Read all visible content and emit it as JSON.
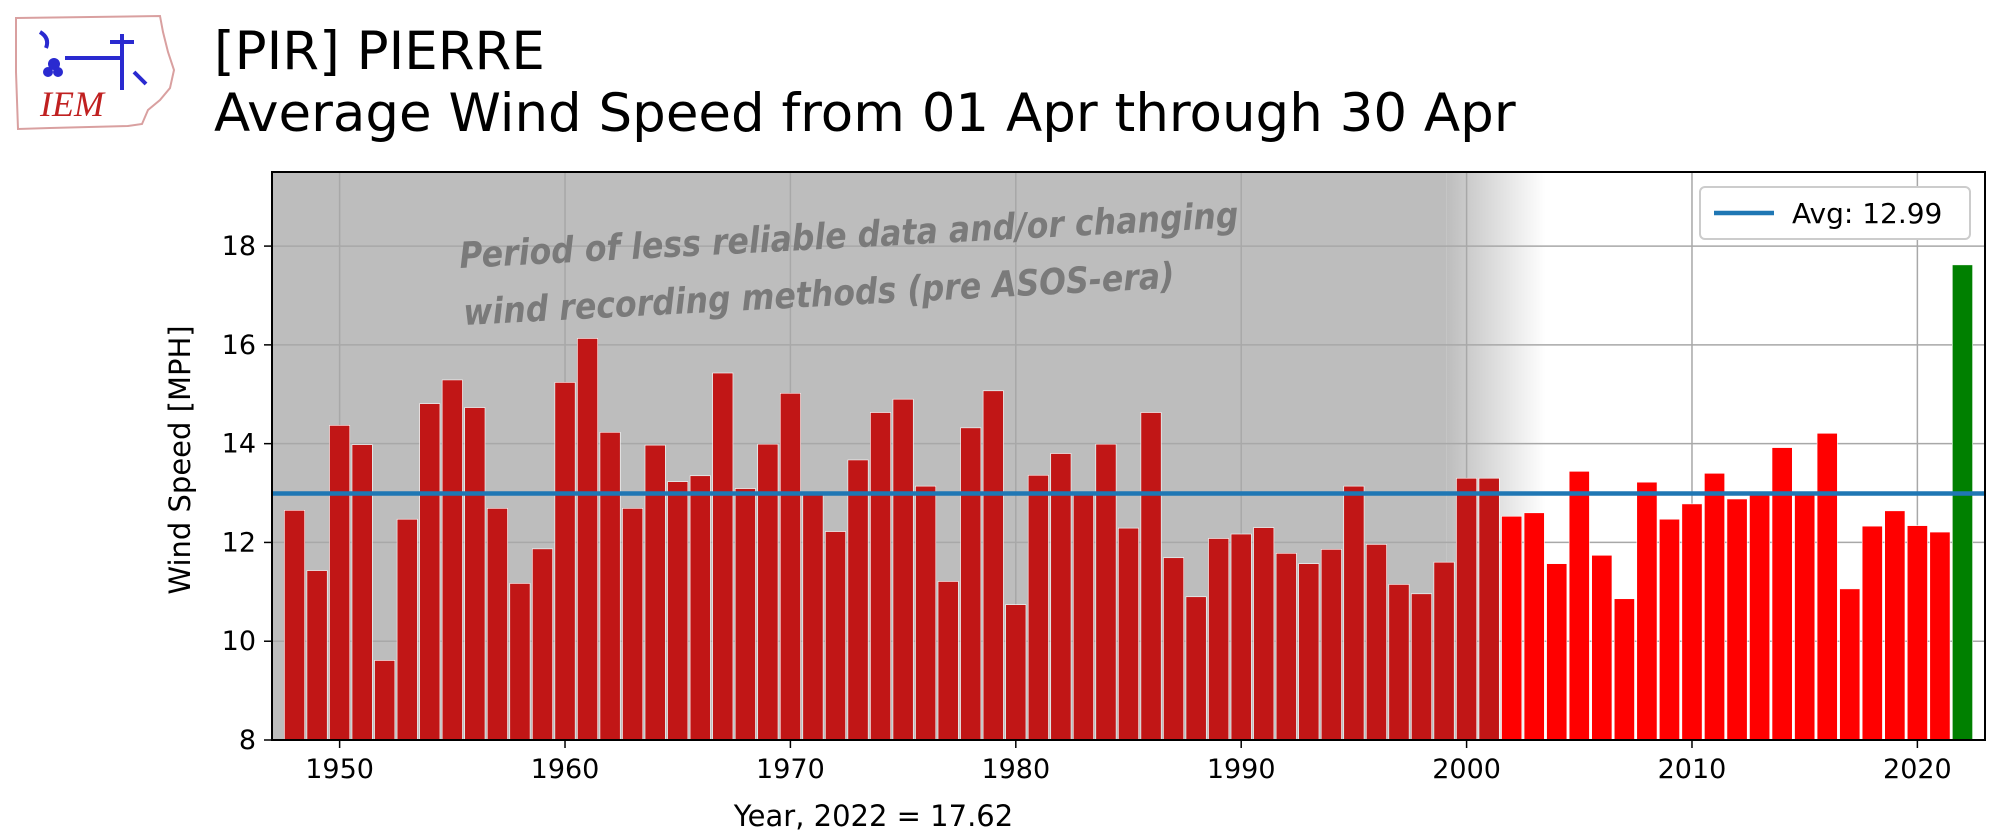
{
  "station_title": "[PIR] PIERRE",
  "subtitle": "Average Wind Speed from 01 Apr through 30 Apr",
  "logo_text": "IEM",
  "colors": {
    "early_bar": "#c11616",
    "modern_bar": "#ff0000",
    "current_bar": "#008000",
    "avg_line": "#1f77b4",
    "shade": "#bdbdbd"
  },
  "chart_data": {
    "type": "bar",
    "xlabel": "Year, 2022 = 17.62",
    "ylabel": "Wind Speed [MPH]",
    "xlim": [
      1947,
      2023
    ],
    "ylim": [
      8,
      19.5
    ],
    "x_ticks": [
      "1950",
      "1960",
      "1970",
      "1980",
      "1990",
      "2000",
      "2010",
      "2020"
    ],
    "y_ticks": [
      "8",
      "10",
      "12",
      "14",
      "16",
      "18"
    ],
    "grid": true,
    "legend_position": "top-right",
    "average": 12.99,
    "avg_label": "Avg: 12.99",
    "annotation_line1": "Period of less reliable data and/or changing",
    "annotation_line2": "wind recording methods (pre ASOS-era)",
    "shaded_until_year": 2000,
    "years": [
      1948,
      1949,
      1950,
      1951,
      1952,
      1953,
      1954,
      1955,
      1956,
      1957,
      1958,
      1959,
      1960,
      1961,
      1962,
      1963,
      1964,
      1965,
      1966,
      1967,
      1968,
      1969,
      1970,
      1971,
      1972,
      1973,
      1974,
      1975,
      1976,
      1977,
      1978,
      1979,
      1980,
      1981,
      1982,
      1983,
      1984,
      1985,
      1986,
      1987,
      1988,
      1989,
      1990,
      1991,
      1992,
      1993,
      1994,
      1995,
      1996,
      1997,
      1998,
      1999,
      2000,
      2001,
      2002,
      2003,
      2004,
      2005,
      2006,
      2007,
      2008,
      2009,
      2010,
      2011,
      2012,
      2013,
      2014,
      2015,
      2016,
      2017,
      2018,
      2019,
      2020,
      2021,
      2022
    ],
    "values": [
      12.65,
      11.43,
      14.37,
      13.98,
      9.61,
      12.47,
      14.81,
      15.29,
      14.73,
      12.69,
      11.17,
      11.87,
      15.24,
      16.13,
      14.23,
      12.69,
      13.97,
      13.23,
      13.35,
      15.43,
      13.09,
      13.99,
      15.02,
      12.96,
      12.22,
      13.67,
      14.63,
      14.9,
      13.14,
      11.21,
      14.32,
      15.07,
      10.74,
      13.36,
      13.8,
      13.02,
      13.99,
      12.29,
      14.63,
      11.69,
      10.9,
      12.08,
      12.17,
      12.3,
      11.78,
      11.57,
      11.86,
      13.14,
      11.96,
      11.15,
      10.96,
      11.6,
      13.3,
      13.3,
      12.53,
      12.6,
      11.57,
      13.44,
      11.74,
      10.86,
      13.22,
      12.47,
      12.78,
      13.4,
      12.88,
      12.97,
      13.92,
      12.99,
      14.21,
      11.06,
      12.33,
      12.64,
      12.34,
      12.21,
      17.62
    ]
  }
}
